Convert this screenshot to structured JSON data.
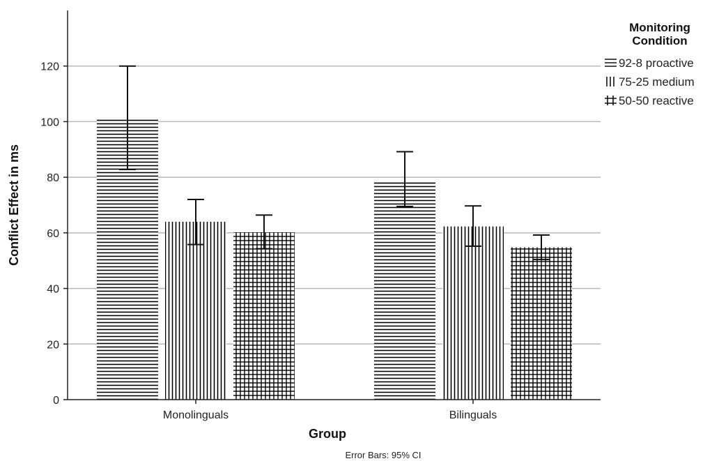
{
  "chart_data": {
    "type": "bar",
    "categories": [
      "Monolinguals",
      "Bilinguals"
    ],
    "series": [
      {
        "name": "92-8 proactive",
        "pattern": "horizontal",
        "values": [
          101.5,
          78.5
        ],
        "ci_low": [
          82.8,
          69.5
        ],
        "ci_high": [
          120.0,
          89.2
        ]
      },
      {
        "name": "75-25 medium",
        "pattern": "vertical",
        "values": [
          64.0,
          62.3
        ],
        "ci_low": [
          55.8,
          55.2
        ],
        "ci_high": [
          72.0,
          69.7
        ]
      },
      {
        "name": "50-50 reactive",
        "pattern": "grid",
        "values": [
          60.2,
          54.8
        ],
        "ci_low": [
          54.3,
          50.4
        ],
        "ci_high": [
          66.4,
          59.2
        ]
      }
    ],
    "xlabel": "Group",
    "ylabel": "Conflict Effect in ms",
    "ylim": [
      0,
      140
    ],
    "yticks": [
      0,
      20,
      40,
      60,
      80,
      100,
      120
    ],
    "grid": true,
    "legend": {
      "title_line1": "Monitoring",
      "title_line2": "Condition",
      "placement": "right"
    },
    "footnote": "Error Bars: 95% CI"
  },
  "colors": {
    "bar_line": "#000000",
    "grid": "#b8b8b8",
    "axis": "#222222"
  }
}
